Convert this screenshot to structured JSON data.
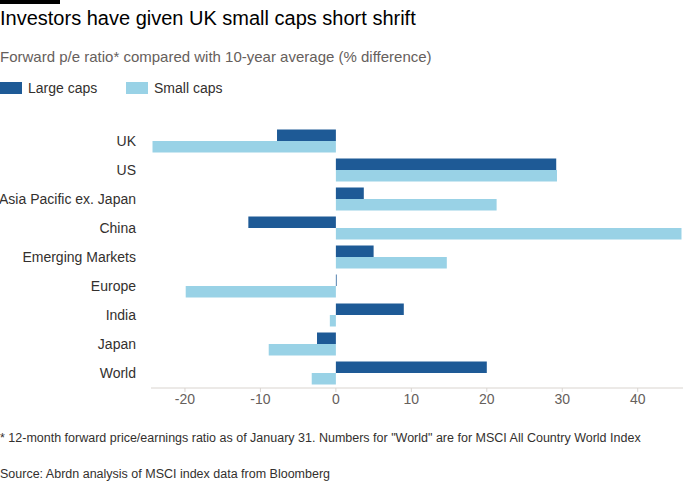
{
  "chart_data": {
    "type": "bar",
    "orientation": "horizontal",
    "title": "Investors have given UK small caps short shrift",
    "subtitle": "Forward p/e ratio* compared with 10-year average (% difference)",
    "categories": [
      "UK",
      "US",
      "Asia Pacific ex. Japan",
      "China",
      "Emerging Markets",
      "Europe",
      "India",
      "Japan",
      "World"
    ],
    "series": [
      {
        "name": "Large caps",
        "color": "#1e5a96",
        "values": [
          -7.8,
          29.2,
          3.7,
          -11.6,
          5.0,
          0.1,
          9.0,
          -2.5,
          20.0
        ]
      },
      {
        "name": "Small caps",
        "color": "#99d2e6",
        "values": [
          -24.3,
          29.3,
          21.3,
          45.8,
          14.7,
          -19.9,
          -0.8,
          -8.9,
          -3.2
        ]
      }
    ],
    "xlim": [
      -24.5,
      46
    ],
    "xticks": [
      -20,
      -10,
      0,
      10,
      20,
      30,
      40
    ],
    "grid": false,
    "legend": "top-left",
    "footnote": "* 12-month forward price/earnings ratio as of January 31. Numbers for \"World\" are for MSCI All Country World Index",
    "source": "Source: Abrdn analysis of MSCI index data from Bloomberg"
  }
}
